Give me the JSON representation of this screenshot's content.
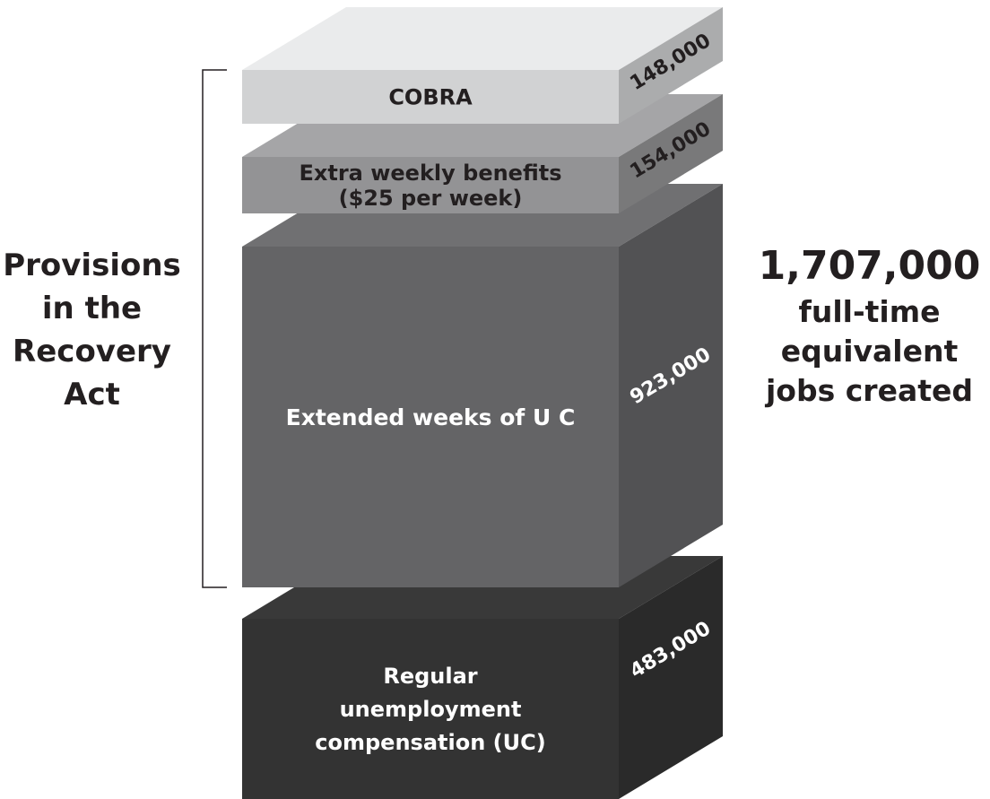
{
  "chart_data": {
    "type": "stacked-bar",
    "unit": "full-time equivalent jobs",
    "segments": [
      {
        "label_lines": [
          "Regular",
          "unemployment",
          "compensation (UC)"
        ],
        "value": 483000,
        "value_label": "483,000",
        "color": "#333333"
      },
      {
        "label_lines": [
          "Extended weeks of U C"
        ],
        "value": 923000,
        "value_label": "923,000",
        "color": "#646466"
      },
      {
        "label_lines": [
          "Extra weekly benefits",
          "($25 per week)"
        ],
        "value": 154000,
        "value_label": "154,000",
        "color": "#939395"
      },
      {
        "label_lines": [
          "COBRA"
        ],
        "value": 148000,
        "value_label": "148,000",
        "color": "#d1d2d3"
      }
    ],
    "bracket_label_lines": [
      "Provisions",
      "in the",
      "Recovery",
      "Act"
    ],
    "total": {
      "value": 1707000,
      "value_label": "1,707,000",
      "caption_lines": [
        "full-time",
        "equivalent",
        "jobs created"
      ]
    }
  }
}
